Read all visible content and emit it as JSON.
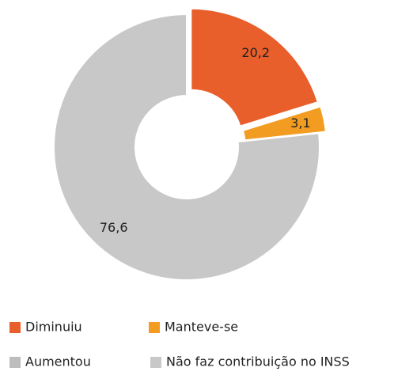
{
  "chart_data": {
    "type": "pie",
    "categories": [
      "Diminuiu",
      "Manteve-se",
      "Aumentou",
      "Não faz contribuição no INSS"
    ],
    "values": [
      20.2,
      3.1,
      0,
      76.6
    ],
    "value_labels": [
      "20,2",
      "3,1",
      null,
      "76,6"
    ],
    "colors": [
      "#e95f2b",
      "#f39c22",
      "#bdbdbd",
      "#c8c8c8"
    ],
    "exploded": [
      true,
      true,
      false,
      false
    ],
    "donut": true,
    "legend": "bottom"
  }
}
